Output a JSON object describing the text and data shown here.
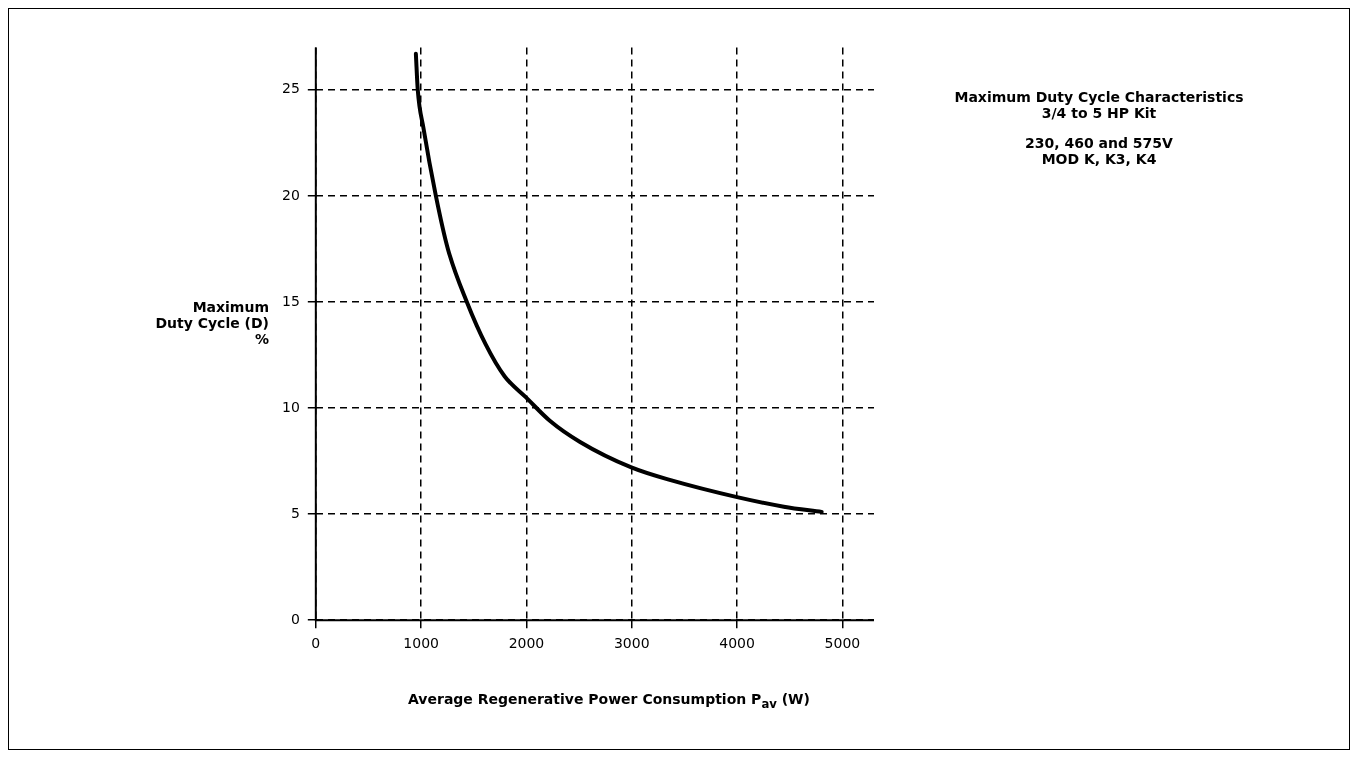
{
  "chart_data": {
    "type": "line",
    "title": "Maximum Duty Cycle Characteristics\n3/4 to 5 HP Kit",
    "subtitle": "230, 460 and 575V\nMOD K, K3, K4",
    "xlabel": "Average Regenerative Power Consumption P$_{av}$ (W)",
    "ylabel": "Maximum\nDuty Cycle (D)\n%",
    "series": [
      {
        "color": "#000000",
        "x": [
          950,
          968,
          1022,
          1140,
          1254,
          1434,
          1613,
          1792,
          1996,
          2222,
          2509,
          2996,
          3369,
          4000,
          4444,
          4803
        ],
        "values": [
          26.7,
          25.0,
          23.2,
          20.0,
          17.5,
          15.0,
          13.0,
          11.5,
          10.5,
          9.4,
          8.4,
          7.2,
          6.6,
          5.8,
          5.35,
          5.1
        ]
      }
    ],
    "xlim": [
      0,
      5300
    ],
    "ylim": [
      0,
      27
    ],
    "xticks": [
      0,
      1000,
      2000,
      3000,
      4000,
      5000
    ],
    "yticks": [
      0,
      5,
      10,
      15,
      20,
      25
    ],
    "grid": true,
    "legend": false,
    "marker": "none",
    "line_style": "solid"
  }
}
